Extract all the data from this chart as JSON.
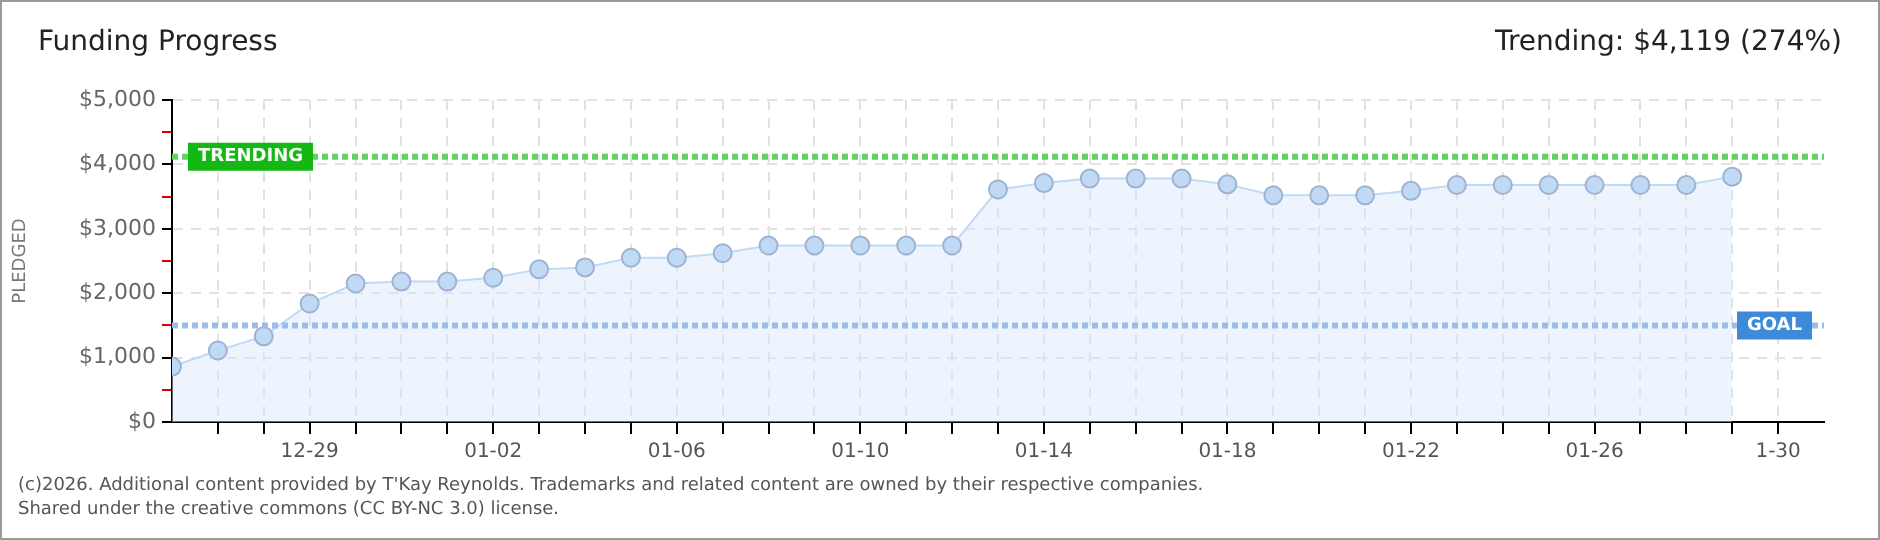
{
  "chart_data": {
    "type": "area",
    "title": "Funding Progress",
    "subtitle": "Trending: $4,119 (274%)",
    "ylabel": "PLEDGED",
    "x": [
      "2025-12-26",
      "2025-12-27",
      "2025-12-28",
      "2025-12-29",
      "2025-12-30",
      "2025-12-31",
      "2026-01-01",
      "2026-01-02",
      "2026-01-03",
      "2026-01-04",
      "2026-01-05",
      "2026-01-06",
      "2026-01-07",
      "2026-01-08",
      "2026-01-09",
      "2026-01-10",
      "2026-01-11",
      "2026-01-12",
      "2026-01-13",
      "2026-01-14",
      "2026-01-15",
      "2026-01-16",
      "2026-01-17",
      "2026-01-18",
      "2026-01-19",
      "2026-01-20",
      "2026-01-21",
      "2026-01-22",
      "2026-01-23",
      "2026-01-24",
      "2026-01-25",
      "2026-01-26",
      "2026-01-27",
      "2026-01-28",
      "2026-01-29"
    ],
    "series": [
      {
        "color": "#c0daf5",
        "values": [
          860,
          1110,
          1330,
          1840,
          2150,
          2180,
          2180,
          2240,
          2370,
          2400,
          2550,
          2550,
          2620,
          2740,
          2740,
          2740,
          2740,
          2740,
          3610,
          3710,
          3780,
          3780,
          3780,
          3690,
          3520,
          3520,
          3520,
          3590,
          3680,
          3680,
          3680,
          3680,
          3680,
          3680,
          3810
        ]
      }
    ],
    "marker": "circle",
    "grid": true,
    "xlim": [
      "2025-12-26",
      "2026-01-31"
    ],
    "xticks": [
      {
        "value": "2025-12-27",
        "label": null
      },
      {
        "value": "2025-12-28",
        "label": null
      },
      {
        "value": "2025-12-29",
        "label": "12-29"
      },
      {
        "value": "2025-12-30",
        "label": null
      },
      {
        "value": "2025-12-31",
        "label": null
      },
      {
        "value": "2026-01-01",
        "label": null
      },
      {
        "value": "2026-01-02",
        "label": "01-02"
      },
      {
        "value": "2026-01-03",
        "label": null
      },
      {
        "value": "2026-01-04",
        "label": null
      },
      {
        "value": "2026-01-05",
        "label": null
      },
      {
        "value": "2026-01-06",
        "label": "01-06"
      },
      {
        "value": "2026-01-07",
        "label": null
      },
      {
        "value": "2026-01-08",
        "label": null
      },
      {
        "value": "2026-01-09",
        "label": null
      },
      {
        "value": "2026-01-10",
        "label": "01-10"
      },
      {
        "value": "2026-01-11",
        "label": null
      },
      {
        "value": "2026-01-12",
        "label": null
      },
      {
        "value": "2026-01-13",
        "label": null
      },
      {
        "value": "2026-01-14",
        "label": "01-14"
      },
      {
        "value": "2026-01-15",
        "label": null
      },
      {
        "value": "2026-01-16",
        "label": null
      },
      {
        "value": "2026-01-17",
        "label": null
      },
      {
        "value": "2026-01-18",
        "label": "01-18"
      },
      {
        "value": "2026-01-19",
        "label": null
      },
      {
        "value": "2026-01-20",
        "label": null
      },
      {
        "value": "2026-01-21",
        "label": null
      },
      {
        "value": "2026-01-22",
        "label": "01-22"
      },
      {
        "value": "2026-01-23",
        "label": null
      },
      {
        "value": "2026-01-24",
        "label": null
      },
      {
        "value": "2026-01-25",
        "label": null
      },
      {
        "value": "2026-01-26",
        "label": "01-26"
      },
      {
        "value": "2026-01-27",
        "label": null
      },
      {
        "value": "2026-01-28",
        "label": null
      },
      {
        "value": "2026-01-29",
        "label": null
      },
      {
        "value": "2026-01-30",
        "label": "1-30"
      }
    ],
    "ylim": [
      0,
      5000
    ],
    "yticks": [
      {
        "value": 0,
        "label": "$0"
      },
      {
        "value": 500,
        "label": null
      },
      {
        "value": 1000,
        "label": "$1,000"
      },
      {
        "value": 1500,
        "label": null
      },
      {
        "value": 2000,
        "label": "$2,000"
      },
      {
        "value": 2500,
        "label": null
      },
      {
        "value": 3000,
        "label": "$3,000"
      },
      {
        "value": 3500,
        "label": null
      },
      {
        "value": 4000,
        "label": "$4,000"
      },
      {
        "value": 4500,
        "label": null
      },
      {
        "value": 5000,
        "label": "$5,000"
      }
    ],
    "ref_lines": [
      {
        "axis": "y",
        "value": 4119,
        "label": "TRENDING",
        "color": "#5fd35f",
        "line_style": "dotted"
      },
      {
        "axis": "y",
        "value": 1500,
        "label": "GOAL",
        "color": "#9dbde8",
        "line_style": "dotted"
      }
    ],
    "annotations": [
      "(c)2026. Additional content provided by T'Kay Reynolds. Trademarks and related content are owned by their respective companies.",
      "Shared under the creative commons (CC BY-NC 3.0) license."
    ]
  }
}
